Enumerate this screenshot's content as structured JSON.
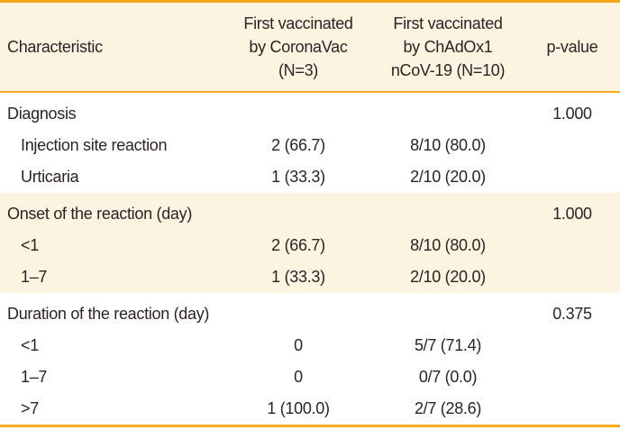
{
  "colors": {
    "accent": "#F6A81C",
    "band_bg": "#FCF3E1",
    "text": "#2A2422",
    "background": "#FFFFFF"
  },
  "table": {
    "header": {
      "characteristic": "Characteristic",
      "coronavac_lines": [
        "First vaccinated",
        "by CoronaVac",
        "(N=3)"
      ],
      "chadox_lines": [
        "First vaccinated",
        "by ChAdOx1",
        "nCoV-19 (N=10)"
      ],
      "p_value": "p-value"
    },
    "rows": [
      {
        "characteristic": "Diagnosis",
        "coronavac": "",
        "chadox": "",
        "p_value": "1.000"
      },
      {
        "characteristic": "Injection site reaction",
        "coronavac": "2 (66.7)",
        "chadox": "8/10 (80.0)",
        "p_value": ""
      },
      {
        "characteristic": "Urticaria",
        "coronavac": "1 (33.3)",
        "chadox": "2/10 (20.0)",
        "p_value": ""
      },
      {
        "characteristic": "Onset of the reaction (day)",
        "coronavac": "",
        "chadox": "",
        "p_value": "1.000"
      },
      {
        "characteristic": "<1",
        "coronavac": "2 (66.7)",
        "chadox": "8/10 (80.0)",
        "p_value": ""
      },
      {
        "characteristic": "1–7",
        "coronavac": "1 (33.3)",
        "chadox": "2/10 (20.0)",
        "p_value": ""
      },
      {
        "characteristic": "Duration of the reaction (day)",
        "coronavac": "",
        "chadox": "",
        "p_value": "0.375"
      },
      {
        "characteristic": "<1",
        "coronavac": "0",
        "chadox": "5/7 (71.4)",
        "p_value": ""
      },
      {
        "characteristic": "1–7",
        "coronavac": "0",
        "chadox": "0/7 (0.0)",
        "p_value": ""
      },
      {
        "characteristic": ">7",
        "coronavac": "1 (100.0)",
        "chadox": "2/7 (28.6)",
        "p_value": ""
      }
    ]
  }
}
